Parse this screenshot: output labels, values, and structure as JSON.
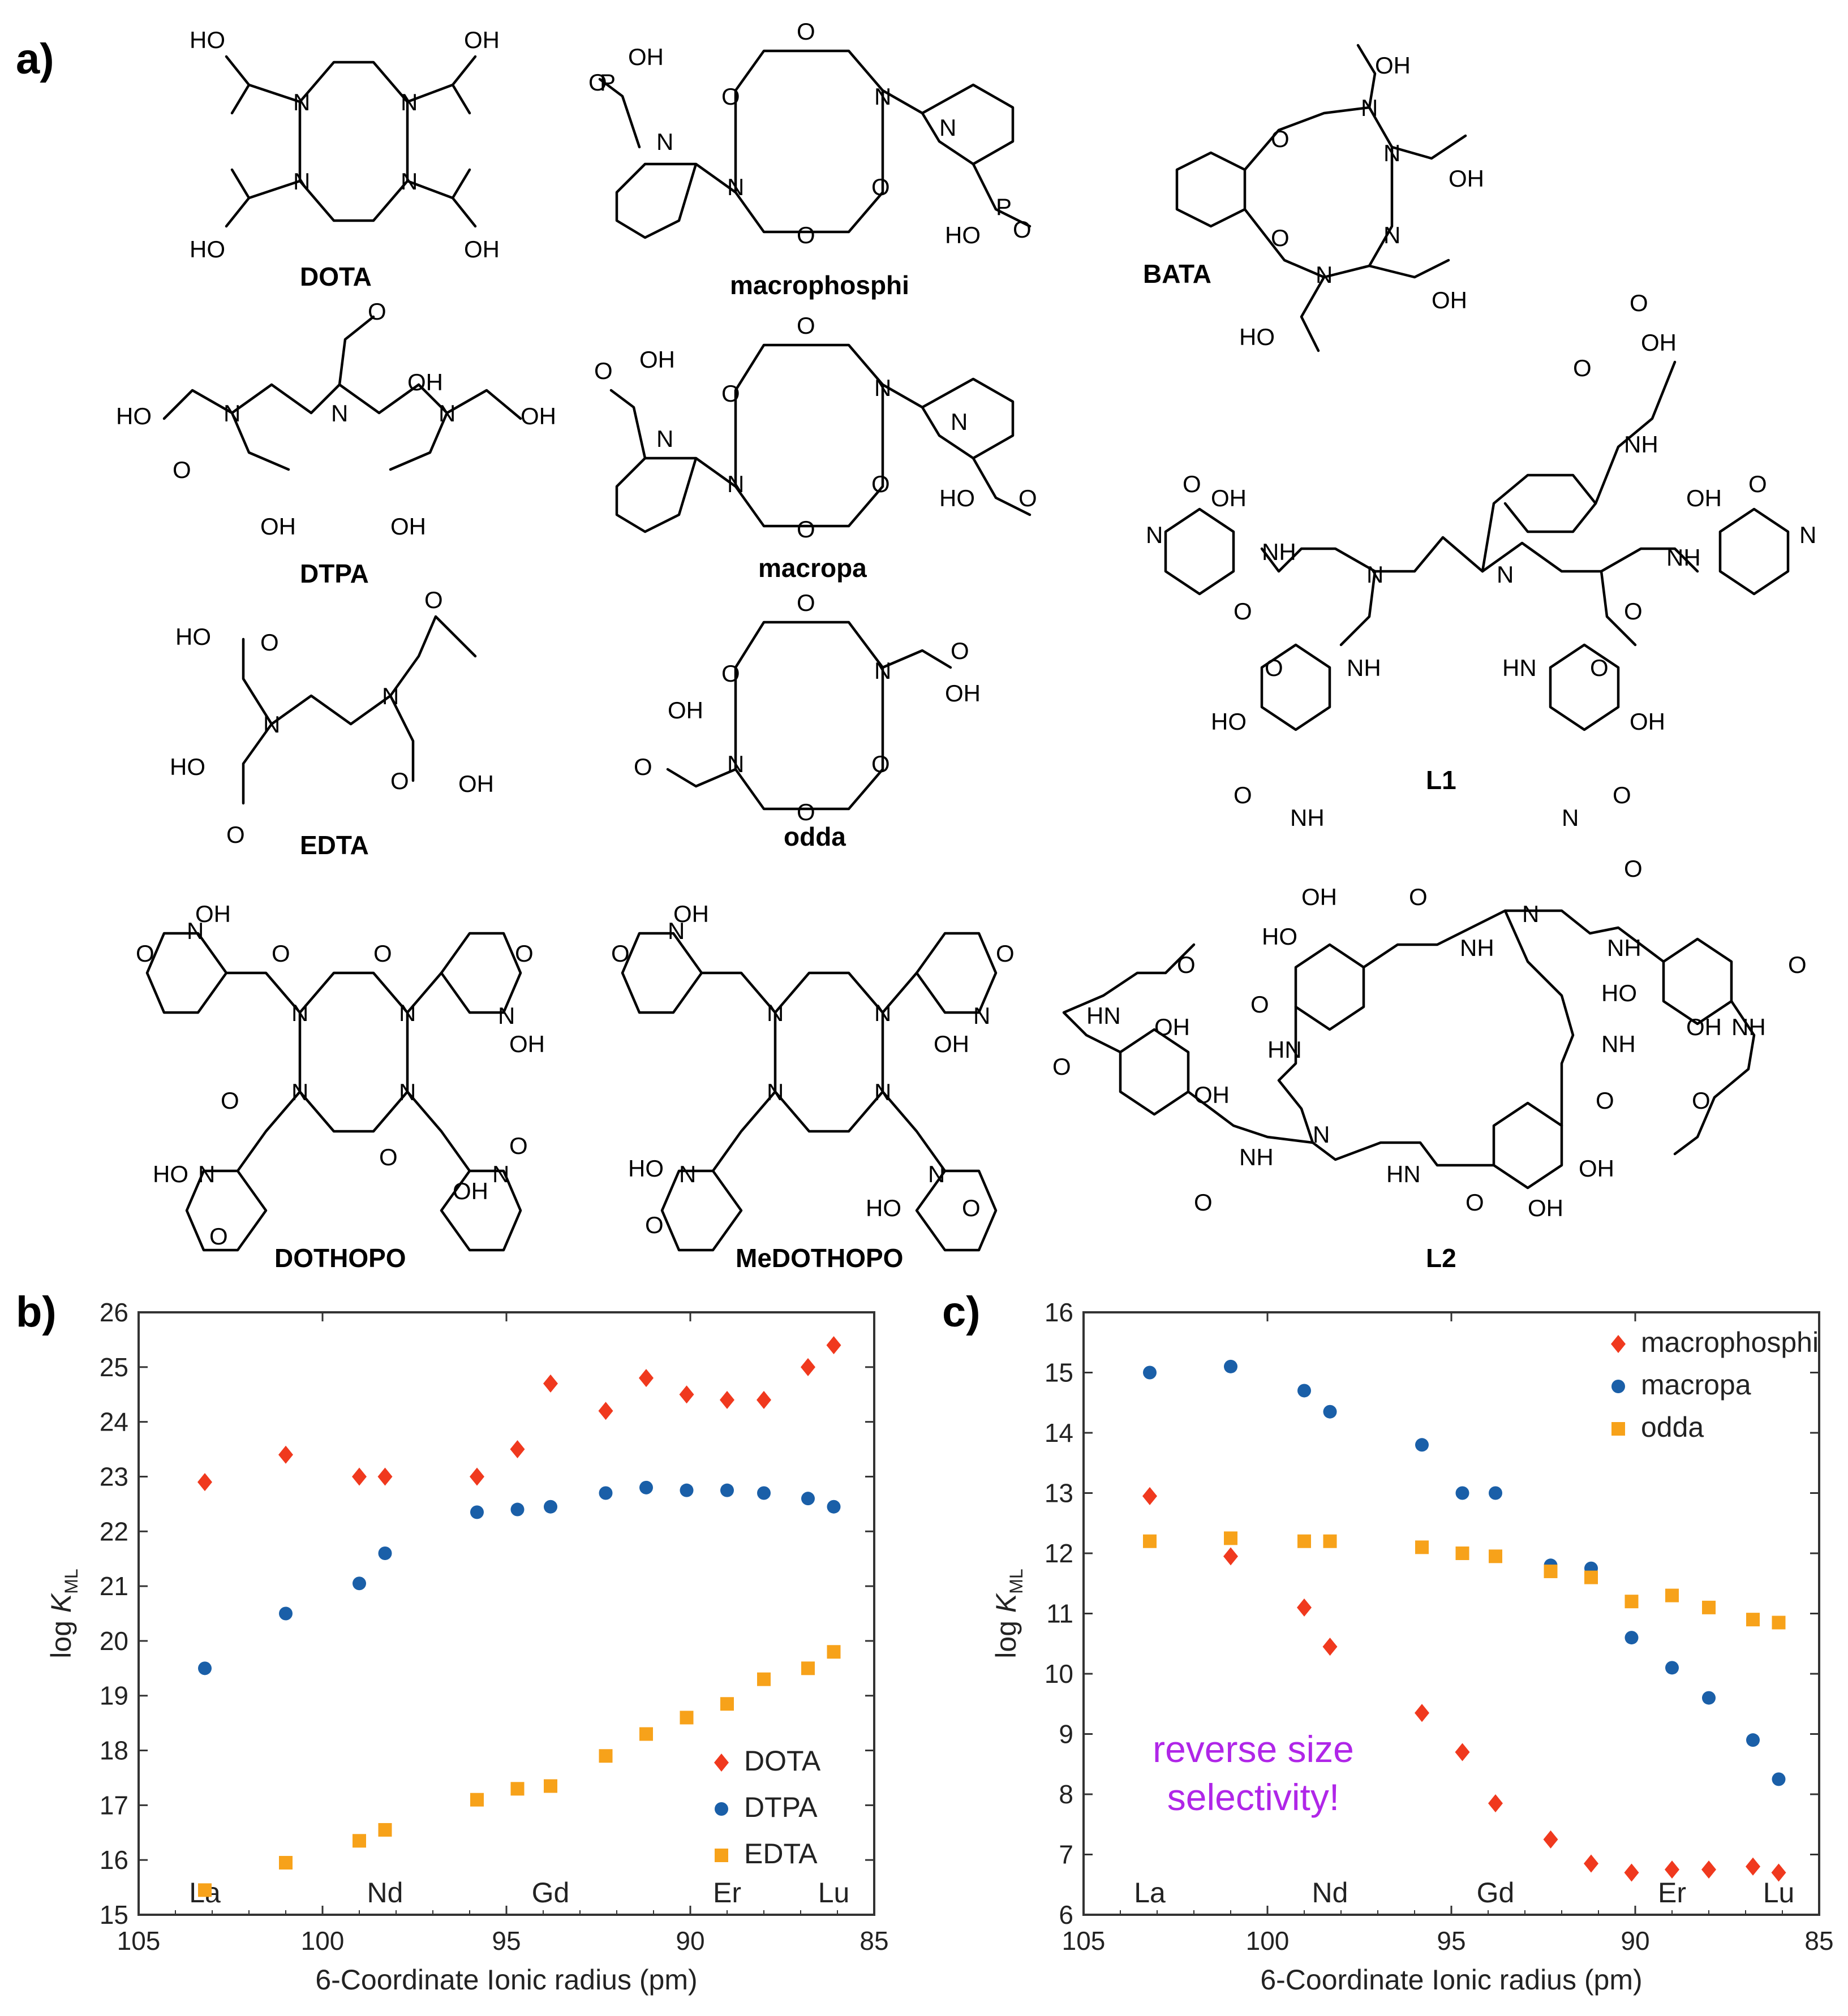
{
  "panels": {
    "a": "a)",
    "b": "b)",
    "c": "c)"
  },
  "structures": [
    {
      "name": "DOTA"
    },
    {
      "name": "macrophosphi"
    },
    {
      "name": "BATA"
    },
    {
      "name": "DTPA"
    },
    {
      "name": "macropa"
    },
    {
      "name": "L1"
    },
    {
      "name": "EDTA"
    },
    {
      "name": "odda"
    },
    {
      "name": "DOTHOPO"
    },
    {
      "name": "MeDOTHOPO"
    },
    {
      "name": "L2"
    }
  ],
  "atoms": {
    "N": "N",
    "O": "O",
    "OH": "OH",
    "HO": "HO",
    "NH": "NH",
    "HN": "HN",
    "P": "P"
  },
  "colors": {
    "red": "#f0391e",
    "blue": "#1a5fa8",
    "orange": "#f7a21a",
    "annot": "#b026e8"
  },
  "chart_data": [
    {
      "type": "scatter",
      "panel": "b)",
      "xlabel": "6-Coordinate Ionic radius (pm)",
      "ylabel_prefix": "log ",
      "ylabel_var": "K",
      "ylabel_sub": "ML",
      "xlim": [
        105,
        85
      ],
      "ylim": [
        15,
        26
      ],
      "xticks": [
        105,
        100,
        95,
        90,
        85
      ],
      "yticks": [
        15,
        16,
        17,
        18,
        19,
        20,
        21,
        22,
        23,
        24,
        25,
        26
      ],
      "element_labels": [
        {
          "text": "La",
          "x": 103.2
        },
        {
          "text": "Nd",
          "x": 98.3
        },
        {
          "text": "Gd",
          "x": 93.8
        },
        {
          "text": "Er",
          "x": 89.0
        },
        {
          "text": "Lu",
          "x": 86.1
        }
      ],
      "legend_position": "bottom-right",
      "series": [
        {
          "name": "DOTA",
          "marker": "diamond",
          "color": "#f0391e",
          "x": [
            103.2,
            101.0,
            99.0,
            98.3,
            95.8,
            94.7,
            93.8,
            92.3,
            91.2,
            90.1,
            89.0,
            88.0,
            86.8,
            86.1
          ],
          "y": [
            22.9,
            23.4,
            23.0,
            23.0,
            23.0,
            23.5,
            24.7,
            24.2,
            24.8,
            24.5,
            24.4,
            24.4,
            25.0,
            25.4
          ]
        },
        {
          "name": "DTPA",
          "marker": "circle",
          "color": "#1a5fa8",
          "x": [
            103.2,
            101.0,
            99.0,
            98.3,
            95.8,
            94.7,
            93.8,
            92.3,
            91.2,
            90.1,
            89.0,
            88.0,
            86.8,
            86.1
          ],
          "y": [
            19.5,
            20.5,
            21.05,
            21.6,
            22.35,
            22.4,
            22.45,
            22.7,
            22.8,
            22.75,
            22.75,
            22.7,
            22.6,
            22.45
          ]
        },
        {
          "name": "EDTA",
          "marker": "square",
          "color": "#f7a21a",
          "x": [
            103.2,
            101.0,
            99.0,
            98.3,
            95.8,
            94.7,
            93.8,
            92.3,
            91.2,
            90.1,
            89.0,
            88.0,
            86.8,
            86.1
          ],
          "y": [
            15.45,
            15.95,
            16.35,
            16.55,
            17.1,
            17.3,
            17.35,
            17.9,
            18.3,
            18.6,
            18.85,
            19.3,
            19.5,
            19.8
          ]
        }
      ]
    },
    {
      "type": "scatter",
      "panel": "c)",
      "xlabel": "6-Coordinate Ionic radius (pm)",
      "ylabel_prefix": "log ",
      "ylabel_var": "K",
      "ylabel_sub": "ML",
      "xlim": [
        105,
        85
      ],
      "ylim": [
        6,
        16
      ],
      "xticks": [
        105,
        100,
        95,
        90,
        85
      ],
      "yticks": [
        6,
        7,
        8,
        9,
        10,
        11,
        12,
        13,
        14,
        15,
        16
      ],
      "element_labels": [
        {
          "text": "La",
          "x": 103.2
        },
        {
          "text": "Nd",
          "x": 98.3
        },
        {
          "text": "Gd",
          "x": 93.8
        },
        {
          "text": "Er",
          "x": 89.0
        },
        {
          "text": "Lu",
          "x": 86.1
        }
      ],
      "legend_position": "top-right",
      "annotation": [
        "reverse size",
        "selectivity!"
      ],
      "series": [
        {
          "name": "macrophosphi",
          "marker": "diamond",
          "color": "#f0391e",
          "x": [
            103.2,
            101.0,
            99.0,
            98.3,
            95.8,
            94.7,
            93.8,
            92.3,
            91.2,
            90.1,
            89.0,
            88.0,
            86.8,
            86.1
          ],
          "y": [
            12.95,
            11.95,
            11.1,
            10.45,
            9.35,
            8.7,
            7.85,
            7.25,
            6.85,
            6.7,
            6.75,
            6.75,
            6.8,
            6.7
          ]
        },
        {
          "name": "macropa",
          "marker": "circle",
          "color": "#1a5fa8",
          "x": [
            103.2,
            101.0,
            99.0,
            98.3,
            95.8,
            94.7,
            93.8,
            92.3,
            91.2,
            90.1,
            89.0,
            88.0,
            86.8,
            86.1
          ],
          "y": [
            15.0,
            15.1,
            14.7,
            14.35,
            13.8,
            13.0,
            13.0,
            11.8,
            11.75,
            10.6,
            10.1,
            9.6,
            8.9,
            8.25
          ]
        },
        {
          "name": "odda",
          "marker": "square",
          "color": "#f7a21a",
          "x": [
            103.2,
            101.0,
            99.0,
            98.3,
            95.8,
            94.7,
            93.8,
            92.3,
            91.2,
            90.1,
            89.0,
            88.0,
            86.8,
            86.1
          ],
          "y": [
            12.2,
            12.25,
            12.2,
            12.2,
            12.1,
            12.0,
            11.95,
            11.7,
            11.6,
            11.2,
            11.3,
            11.1,
            10.9,
            10.85
          ]
        }
      ]
    }
  ]
}
